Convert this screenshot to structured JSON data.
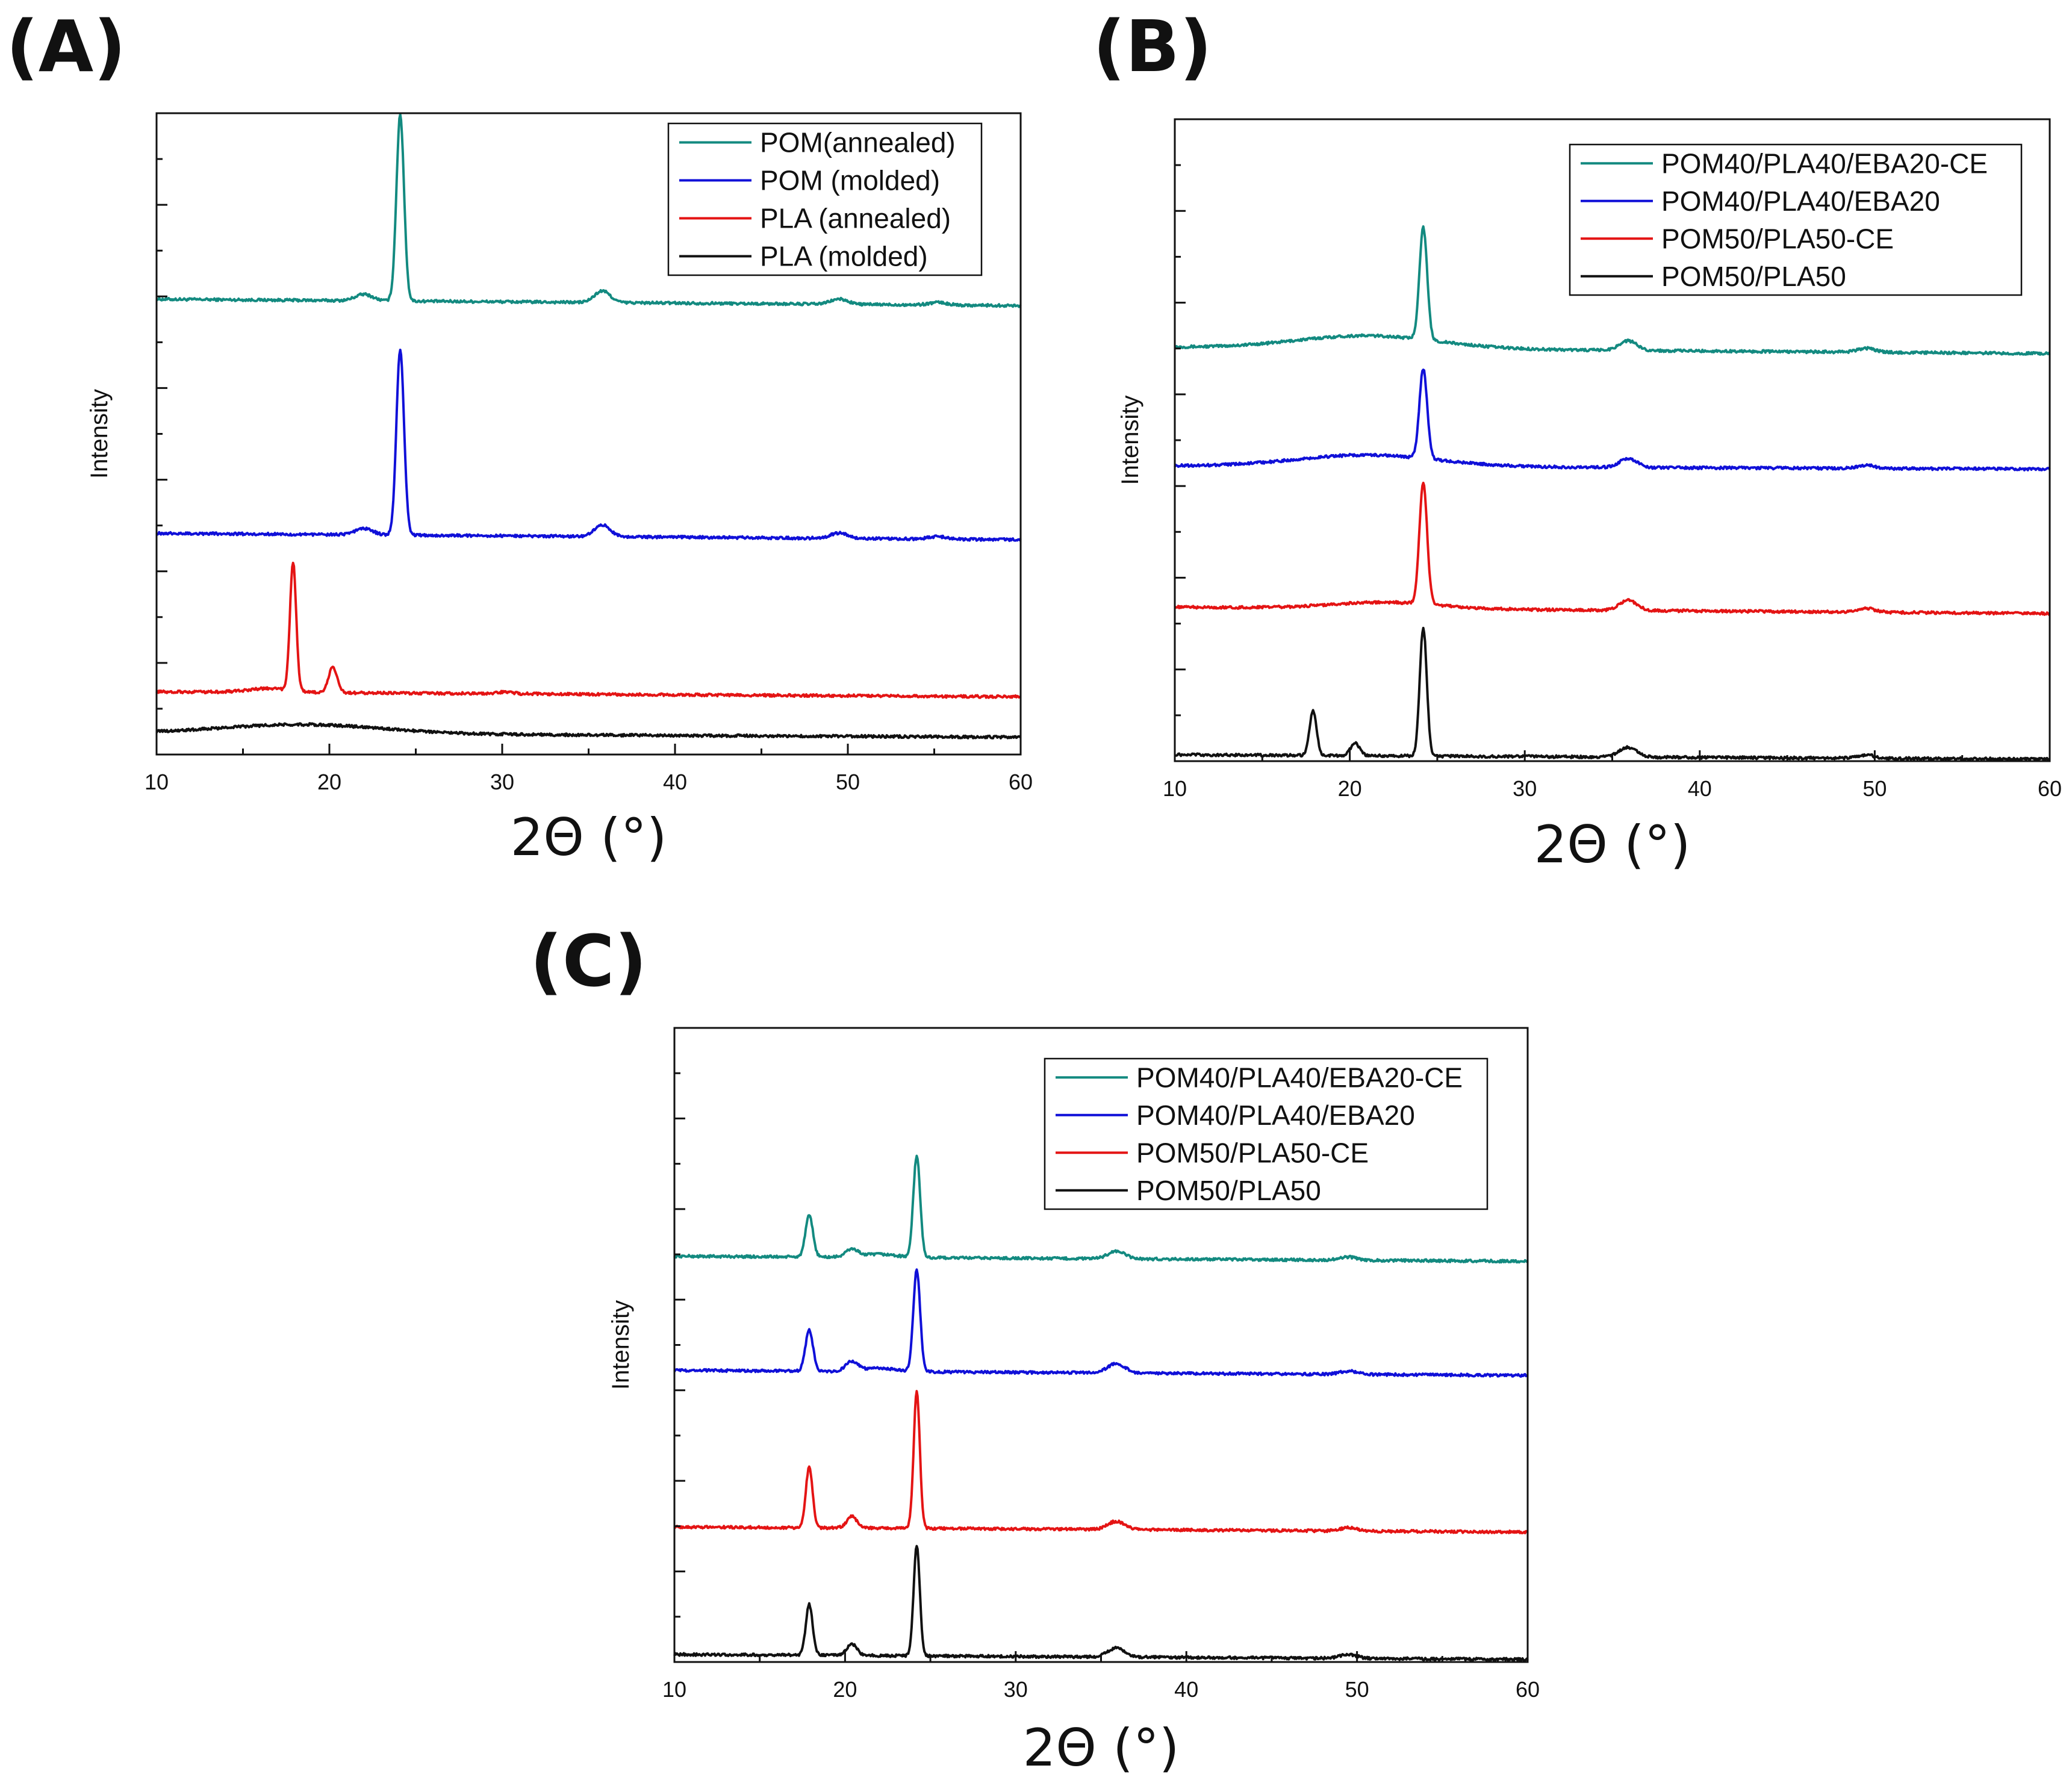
{
  "chart_data": [
    {
      "type": "line",
      "panel_label": "(A)",
      "xlabel": "2Θ (°)",
      "ylabel": "Intensity",
      "xlim": [
        10,
        60
      ],
      "xticks": [
        10,
        20,
        30,
        40,
        50,
        60
      ],
      "ylim": [
        0,
        1
      ],
      "legend": "top-right",
      "series": [
        {
          "name": "POM(annealed)",
          "color": "#138a80",
          "baseline": 0.71,
          "end": 0.7,
          "peaks": [
            [
              22.0,
              0.01,
              0.5
            ],
            [
              24.1,
              0.29,
              0.22
            ],
            [
              35.8,
              0.018,
              0.45
            ],
            [
              49.5,
              0.008,
              0.5
            ],
            [
              55.2,
              0.004,
              0.5
            ]
          ]
        },
        {
          "name": "POM (molded)",
          "color": "#1010d8",
          "baseline": 0.345,
          "end": 0.335,
          "peaks": [
            [
              22.0,
              0.01,
              0.5
            ],
            [
              24.1,
              0.29,
              0.22
            ],
            [
              35.8,
              0.018,
              0.45
            ],
            [
              49.5,
              0.008,
              0.5
            ],
            [
              55.2,
              0.004,
              0.5
            ]
          ]
        },
        {
          "name": "PLA (annealed)",
          "color": "#e41414",
          "baseline": 0.098,
          "end": 0.09,
          "peaks": [
            [
              16.5,
              0.006,
              1.2
            ],
            [
              17.9,
              0.2,
              0.18
            ],
            [
              20.2,
              0.04,
              0.25
            ],
            [
              30.2,
              0.003,
              0.4
            ]
          ]
        },
        {
          "name": "PLA (molded)",
          "color": "#111111",
          "baseline": 0.034,
          "end": 0.027,
          "peaks": [
            [
              18.5,
              0.014,
              4.5
            ]
          ]
        }
      ]
    },
    {
      "type": "line",
      "panel_label": "(B)",
      "xlabel": "2Θ (°)",
      "ylabel": "Intensity",
      "xlim": [
        10,
        60
      ],
      "xticks": [
        10,
        20,
        30,
        40,
        50,
        60
      ],
      "ylim": [
        0,
        1
      ],
      "legend": "top-right",
      "series": [
        {
          "name": "POM40/PLA40/EBA20-CE",
          "color": "#138a80",
          "baseline": 0.645,
          "end": 0.635,
          "peaks": [
            [
              21.0,
              0.02,
              4.0
            ],
            [
              24.2,
              0.175,
              0.22
            ],
            [
              35.9,
              0.015,
              0.5
            ],
            [
              49.5,
              0.006,
              0.5
            ]
          ]
        },
        {
          "name": "POM40/PLA40/EBA20",
          "color": "#1010d8",
          "baseline": 0.46,
          "end": 0.455,
          "peaks": [
            [
              21.0,
              0.018,
              4.0
            ],
            [
              24.2,
              0.14,
              0.22
            ],
            [
              35.9,
              0.014,
              0.5
            ],
            [
              49.5,
              0.005,
              0.5
            ]
          ]
        },
        {
          "name": "POM50/PLA50-CE",
          "color": "#e41414",
          "baseline": 0.24,
          "end": 0.23,
          "peaks": [
            [
              22.0,
              0.01,
              3.0
            ],
            [
              24.2,
              0.19,
              0.22
            ],
            [
              35.9,
              0.016,
              0.5
            ],
            [
              49.5,
              0.006,
              0.5
            ]
          ]
        },
        {
          "name": "POM50/PLA50",
          "color": "#111111",
          "baseline": 0.01,
          "end": 0.003,
          "peaks": [
            [
              17.9,
              0.07,
              0.2
            ],
            [
              20.3,
              0.02,
              0.25
            ],
            [
              24.2,
              0.2,
              0.2
            ],
            [
              35.9,
              0.015,
              0.5
            ],
            [
              49.5,
              0.005,
              0.5
            ]
          ]
        }
      ]
    },
    {
      "type": "line",
      "panel_label": "(C)",
      "xlabel": "2Θ (°)",
      "ylabel": "Intensity",
      "xlim": [
        10,
        60
      ],
      "xticks": [
        10,
        20,
        30,
        40,
        50,
        60
      ],
      "ylim": [
        0,
        1
      ],
      "legend": "top-right",
      "series": [
        {
          "name": "POM40/PLA40/EBA20-CE",
          "color": "#138a80",
          "baseline": 0.64,
          "end": 0.632,
          "peaks": [
            [
              17.9,
              0.065,
              0.22
            ],
            [
              20.4,
              0.012,
              0.35
            ],
            [
              22.0,
              0.005,
              1.0
            ],
            [
              24.2,
              0.16,
              0.2
            ],
            [
              35.9,
              0.012,
              0.5
            ],
            [
              49.5,
              0.005,
              0.5
            ]
          ]
        },
        {
          "name": "POM40/PLA40/EBA20",
          "color": "#1010d8",
          "baseline": 0.46,
          "end": 0.452,
          "peaks": [
            [
              17.9,
              0.065,
              0.22
            ],
            [
              20.4,
              0.015,
              0.35
            ],
            [
              22.0,
              0.005,
              1.0
            ],
            [
              24.2,
              0.16,
              0.2
            ],
            [
              35.9,
              0.015,
              0.5
            ],
            [
              49.5,
              0.005,
              0.5
            ]
          ]
        },
        {
          "name": "POM50/PLA50-CE",
          "color": "#e41414",
          "baseline": 0.213,
          "end": 0.205,
          "peaks": [
            [
              17.9,
              0.095,
              0.2
            ],
            [
              20.4,
              0.018,
              0.3
            ],
            [
              24.2,
              0.215,
              0.18
            ],
            [
              35.9,
              0.013,
              0.5
            ],
            [
              49.5,
              0.005,
              0.5
            ]
          ]
        },
        {
          "name": "POM50/PLA50",
          "color": "#111111",
          "baseline": 0.012,
          "end": 0.004,
          "peaks": [
            [
              17.9,
              0.08,
              0.2
            ],
            [
              20.4,
              0.018,
              0.3
            ],
            [
              24.2,
              0.175,
              0.18
            ],
            [
              35.9,
              0.014,
              0.5
            ],
            [
              49.5,
              0.006,
              0.5
            ]
          ]
        }
      ]
    }
  ]
}
